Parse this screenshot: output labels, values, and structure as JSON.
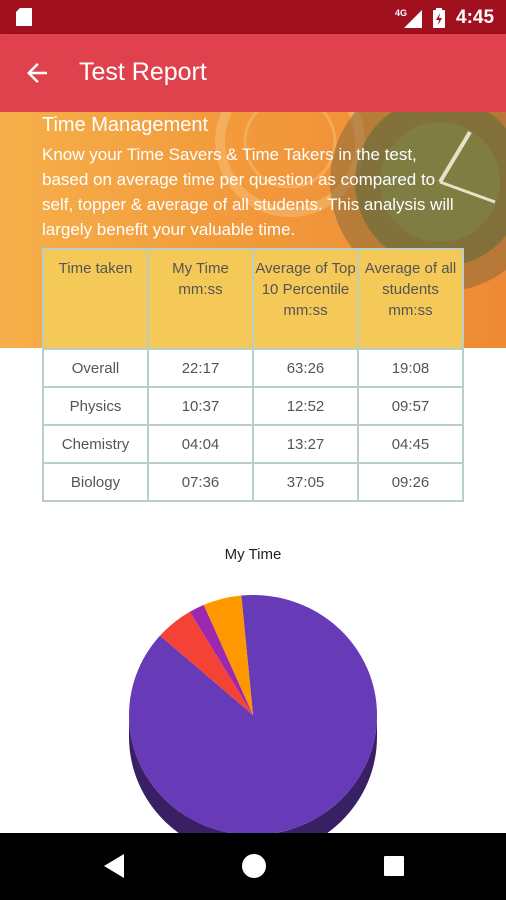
{
  "status_bar": {
    "time": "4:45",
    "network": "4G",
    "icons": [
      "sd-card-icon",
      "signal-icon",
      "battery-icon"
    ]
  },
  "app_bar": {
    "title": "Test Report",
    "back_icon": "arrow-back-icon"
  },
  "time_management": {
    "heading": "Time Management",
    "description": "Know your Time Savers & Time Takers in the test, based on average time per question as compared to self, topper & average of all students. This analysis will largely benefit your valuable time.",
    "table": {
      "headers": [
        "Time taken",
        "My Time mm:ss",
        "Average of Top 10 Percentile mm:ss",
        "Average of all students mm:ss"
      ],
      "rows": [
        [
          "Overall",
          "22:17",
          "63:26",
          "19:08"
        ],
        [
          "Physics",
          "10:37",
          "12:52",
          "09:57"
        ],
        [
          "Chemistry",
          "04:04",
          "13:27",
          "04:45"
        ],
        [
          "Biology",
          "07:36",
          "37:05",
          "09:26"
        ]
      ]
    }
  },
  "chart_data": {
    "type": "pie",
    "title": "My Time",
    "slices": [
      {
        "value": 88,
        "color": "#673ab7"
      },
      {
        "value": 5,
        "color": "#f44336"
      },
      {
        "value": 2,
        "color": "#9c27b0"
      },
      {
        "value": 5,
        "color": "#ff9800"
      }
    ]
  },
  "nav_bar": {
    "icons": [
      "back-triangle-icon",
      "home-circle-icon",
      "recents-square-icon"
    ]
  },
  "colors": {
    "status_bar": "#a0101f",
    "app_bar": "#e0424d",
    "banner": "#f29a3c",
    "table_header": "#f5c958"
  }
}
